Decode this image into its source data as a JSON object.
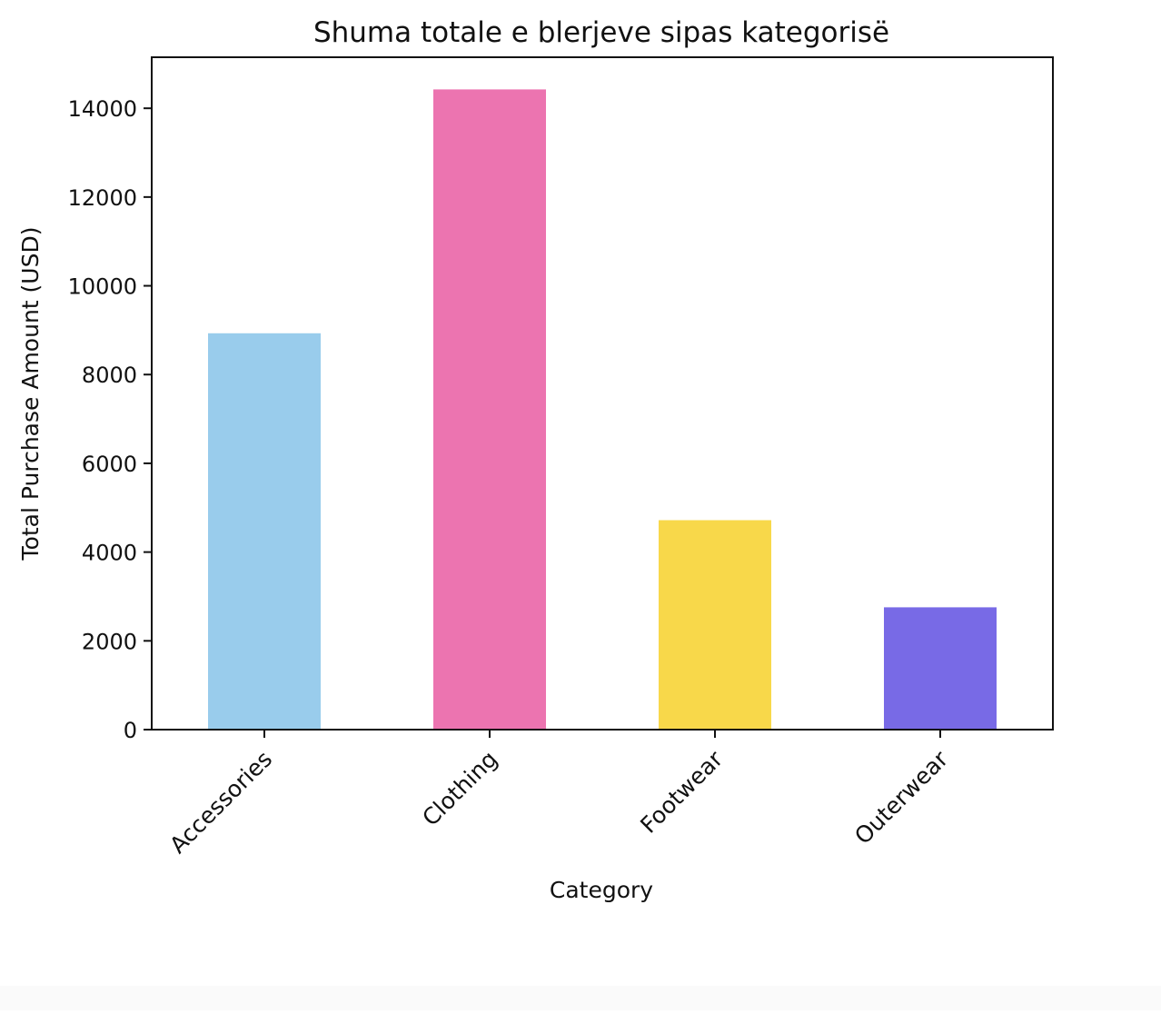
{
  "chart_data": {
    "type": "bar",
    "title": "Shuma totale e blerjeve sipas kategorisë",
    "xlabel": "Category",
    "ylabel": "Total Purchase Amount (USD)",
    "categories": [
      "Accessories",
      "Clothing",
      "Footwear",
      "Outerwear"
    ],
    "values": [
      8931,
      14426,
      4720,
      2756
    ],
    "colors": [
      "#99ccec",
      "#ec74b0",
      "#f8d84a",
      "#786ae6"
    ],
    "ylim": [
      0,
      15150
    ],
    "yticks": [
      0,
      2000,
      4000,
      6000,
      8000,
      10000,
      12000,
      14000
    ],
    "ytick_labels": [
      "0",
      "2000",
      "4000",
      "6000",
      "8000",
      "10000",
      "12000",
      "14000"
    ],
    "grid": false,
    "legend": "none"
  }
}
